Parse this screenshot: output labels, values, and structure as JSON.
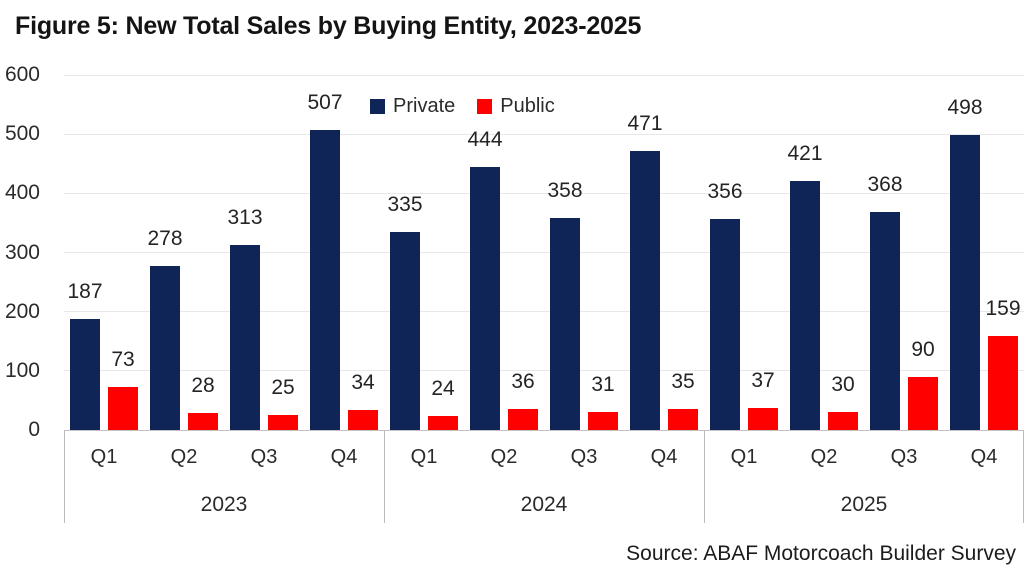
{
  "title": "Figure 5: New Total Sales by Buying Entity, 2023-2025",
  "source": "Source: ABAF Motorcoach Builder Survey",
  "colors": {
    "private": "#0f2457",
    "public": "#fe0000",
    "gridline": "#e8e8e8",
    "axis_line": "#c3c3c3",
    "text": "#2b2b2b"
  },
  "legend": {
    "items": [
      {
        "label": "Private",
        "color": "#0f2457"
      },
      {
        "label": "Public",
        "color": "#fe0000"
      }
    ]
  },
  "chart_data": {
    "type": "bar",
    "title": "Figure 5: New Total Sales by Buying Entity, 2023-2025",
    "xlabel": "",
    "ylabel": "",
    "ylim": [
      0,
      600
    ],
    "yticks": [
      0,
      100,
      200,
      300,
      400,
      500,
      600
    ],
    "grid": "horizontal",
    "legend_position": "top-center",
    "categories": [
      "Q1",
      "Q2",
      "Q3",
      "Q4"
    ],
    "groups": [
      {
        "year": "2023",
        "Private": [
          187,
          278,
          313,
          507
        ],
        "Public": [
          73,
          28,
          25,
          34
        ]
      },
      {
        "year": "2024",
        "Private": [
          335,
          444,
          358,
          471
        ],
        "Public": [
          24,
          36,
          31,
          35
        ]
      },
      {
        "year": "2025",
        "Private": [
          356,
          421,
          368,
          498
        ],
        "Public": [
          37,
          30,
          90,
          159
        ]
      }
    ],
    "series": [
      {
        "name": "Private",
        "color": "#0f2457"
      },
      {
        "name": "Public",
        "color": "#fe0000"
      }
    ],
    "source": "Source: ABAF Motorcoach Builder Survey"
  }
}
